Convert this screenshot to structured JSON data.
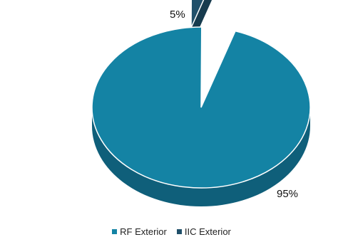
{
  "chart_data": {
    "type": "pie",
    "style": "3d-exploded",
    "title": "",
    "categories": [
      "RF Exterior",
      "IIC Exterior"
    ],
    "values": [
      95,
      5
    ],
    "data_labels": [
      "95%",
      "5%"
    ],
    "colors": {
      "RF Exterior": "#1483A4",
      "IIC Exterior": "#20506A"
    },
    "side_colors": {
      "RF Exterior": "#0F5F7A",
      "IIC Exterior": "#173B4E"
    },
    "legend_position": "bottom"
  }
}
